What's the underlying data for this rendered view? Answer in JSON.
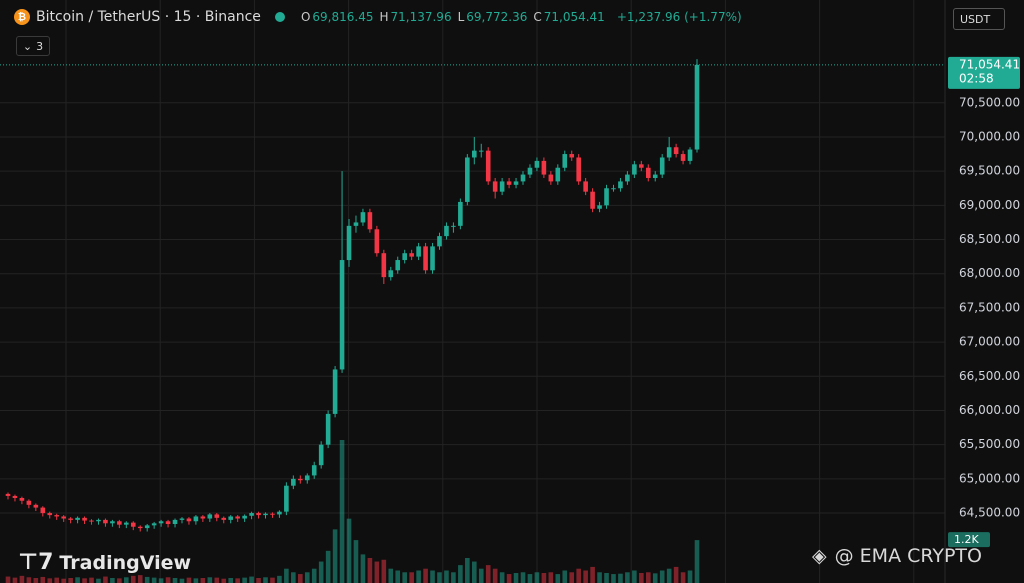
{
  "header": {
    "symbol": "Bitcoin / TetherUS · 15 · Binance",
    "ohlc_legend": [
      {
        "key": "O",
        "value": "69,816.45"
      },
      {
        "key": "H",
        "value": "71,137.96"
      },
      {
        "key": "L",
        "value": "69,772.36"
      },
      {
        "key": "C",
        "value": "71,054.41"
      }
    ],
    "change": "+1,237.96 (+1.77%)",
    "indicator_count": "3",
    "currency": "USDT"
  },
  "watermark": "TradingView",
  "credit": "@ EMA CRYPTO",
  "chart_data": {
    "type": "candlestick",
    "open": [
      64780,
      64750,
      64720,
      64680,
      64620,
      64580,
      64500,
      64470,
      64450,
      64420,
      64400,
      64430,
      64390,
      64380,
      64400,
      64350,
      64380,
      64330,
      64360,
      64300,
      64280,
      64320,
      64350,
      64380,
      64340,
      64400,
      64420,
      64380,
      64450,
      64420,
      64480,
      64430,
      64400,
      64450,
      64420,
      64460,
      64500,
      64470,
      64490,
      64480,
      64520,
      64900,
      65000,
      64980,
      65050,
      65200,
      65500,
      65950,
      66600,
      68200,
      68700,
      68750,
      68900,
      68650,
      68300,
      67950,
      68050,
      68200,
      68300,
      68250,
      68400,
      68050,
      68400,
      68550,
      68700,
      68700,
      69050,
      69700,
      69800,
      69800,
      69350,
      69200,
      69350,
      69300,
      69350,
      69450,
      69550,
      69650,
      69450,
      69350,
      69550,
      69750,
      69700,
      69350,
      69200,
      68950,
      69000,
      69250,
      69250,
      69350,
      69450,
      69600,
      69550,
      69400,
      69450,
      69700,
      69850,
      69750,
      69650,
      69816.45
    ],
    "high": [
      64800,
      64770,
      64740,
      64700,
      64640,
      64600,
      64520,
      64490,
      64470,
      64440,
      64450,
      64450,
      64410,
      64420,
      64420,
      64400,
      64400,
      64380,
      64380,
      64320,
      64340,
      64370,
      64400,
      64400,
      64420,
      64440,
      64440,
      64470,
      64470,
      64500,
      64500,
      64450,
      64470,
      64470,
      64480,
      64520,
      64520,
      64510,
      64510,
      64540,
      64950,
      65050,
      65050,
      65080,
      65250,
      65550,
      66000,
      66650,
      69500,
      68800,
      68850,
      68950,
      68950,
      68700,
      68350,
      68100,
      68250,
      68350,
      68350,
      68450,
      68450,
      68450,
      68600,
      68750,
      68750,
      69100,
      69750,
      70000,
      69900,
      69850,
      69400,
      69400,
      69400,
      69400,
      69500,
      69600,
      69700,
      69700,
      69500,
      69600,
      69800,
      69800,
      69750,
      69400,
      69250,
      69050,
      69300,
      69300,
      69400,
      69500,
      69650,
      69650,
      69600,
      69500,
      69750,
      70000,
      69900,
      69800,
      69850,
      71137.96
    ],
    "low": [
      64700,
      64670,
      64630,
      64570,
      64530,
      64450,
      64420,
      64400,
      64370,
      64350,
      64350,
      64340,
      64330,
      64330,
      64300,
      64300,
      64280,
      64280,
      64250,
      64230,
      64230,
      64270,
      64300,
      64290,
      64290,
      64350,
      64330,
      64330,
      64370,
      64370,
      64380,
      64350,
      64350,
      64370,
      64370,
      64410,
      64420,
      64420,
      64430,
      64430,
      64470,
      64850,
      64930,
      64930,
      65000,
      65150,
      65450,
      65900,
      66550,
      68100,
      68600,
      68700,
      68600,
      68250,
      67850,
      67900,
      68000,
      68150,
      68200,
      68200,
      68000,
      68000,
      68350,
      68500,
      68600,
      68650,
      69000,
      69600,
      69700,
      69300,
      69100,
      69150,
      69250,
      69250,
      69300,
      69400,
      69500,
      69400,
      69300,
      69300,
      69500,
      69650,
      69300,
      69150,
      68900,
      68900,
      68950,
      69200,
      69200,
      69300,
      69400,
      69500,
      69350,
      69350,
      69400,
      69650,
      69700,
      69600,
      69600,
      69772.36
    ],
    "close": [
      64750,
      64720,
      64680,
      64620,
      64580,
      64500,
      64470,
      64450,
      64420,
      64400,
      64430,
      64390,
      64380,
      64400,
      64350,
      64380,
      64330,
      64360,
      64300,
      64280,
      64320,
      64350,
      64380,
      64340,
      64400,
      64420,
      64380,
      64450,
      64420,
      64480,
      64430,
      64400,
      64450,
      64420,
      64460,
      64500,
      64470,
      64490,
      64480,
      64520,
      64900,
      65000,
      64980,
      65050,
      65200,
      65500,
      65950,
      66600,
      68200,
      68700,
      68750,
      68900,
      68650,
      68300,
      67950,
      68050,
      68200,
      68300,
      68250,
      68400,
      68050,
      68400,
      68550,
      68700,
      68700,
      69050,
      69700,
      69800,
      69800,
      69350,
      69200,
      69350,
      69300,
      69350,
      69450,
      69550,
      69650,
      69450,
      69350,
      69550,
      69750,
      69700,
      69350,
      69200,
      68950,
      69000,
      69250,
      69250,
      69350,
      69450,
      69600,
      69550,
      69400,
      69450,
      69700,
      69850,
      69750,
      69650,
      69816.45,
      71054.41
    ],
    "volume": [
      180,
      150,
      200,
      160,
      140,
      170,
      130,
      150,
      120,
      140,
      160,
      130,
      150,
      120,
      180,
      140,
      130,
      160,
      200,
      220,
      170,
      150,
      130,
      160,
      140,
      120,
      150,
      130,
      140,
      160,
      150,
      120,
      140,
      130,
      150,
      180,
      140,
      160,
      150,
      200,
      400,
      300,
      250,
      300,
      400,
      600,
      900,
      1500,
      4000,
      1800,
      1200,
      800,
      700,
      600,
      650,
      400,
      350,
      300,
      300,
      350,
      400,
      350,
      300,
      350,
      300,
      500,
      700,
      600,
      400,
      500,
      400,
      300,
      250,
      280,
      300,
      250,
      300,
      280,
      300,
      250,
      350,
      300,
      400,
      350,
      450,
      300,
      280,
      250,
      260,
      300,
      350,
      280,
      300,
      270,
      350,
      400,
      450,
      300,
      350,
      1200
    ],
    "up_color": "#22ab94",
    "down_color": "#f23645",
    "ylim": [
      63477,
      72003
    ],
    "yticks": [
      {
        "value": 64500,
        "label": "64,500.00"
      },
      {
        "value": 65000,
        "label": "65,000.00"
      },
      {
        "value": 65500,
        "label": "65,500.00"
      },
      {
        "value": 66000,
        "label": "66,000.00"
      },
      {
        "value": 66500,
        "label": "66,500.00"
      },
      {
        "value": 67000,
        "label": "67,000.00"
      },
      {
        "value": 67500,
        "label": "67,500.00"
      },
      {
        "value": 68000,
        "label": "68,000.00"
      },
      {
        "value": 68500,
        "label": "68,500.00"
      },
      {
        "value": 69000,
        "label": "69,000.00"
      },
      {
        "value": 69500,
        "label": "69,500.00"
      },
      {
        "value": 70000,
        "label": "70,000.00"
      },
      {
        "value": 70500,
        "label": "70,500.00"
      }
    ],
    "price_label": "71,054.41",
    "countdown": "02:58",
    "volume_label": "1.2K"
  }
}
